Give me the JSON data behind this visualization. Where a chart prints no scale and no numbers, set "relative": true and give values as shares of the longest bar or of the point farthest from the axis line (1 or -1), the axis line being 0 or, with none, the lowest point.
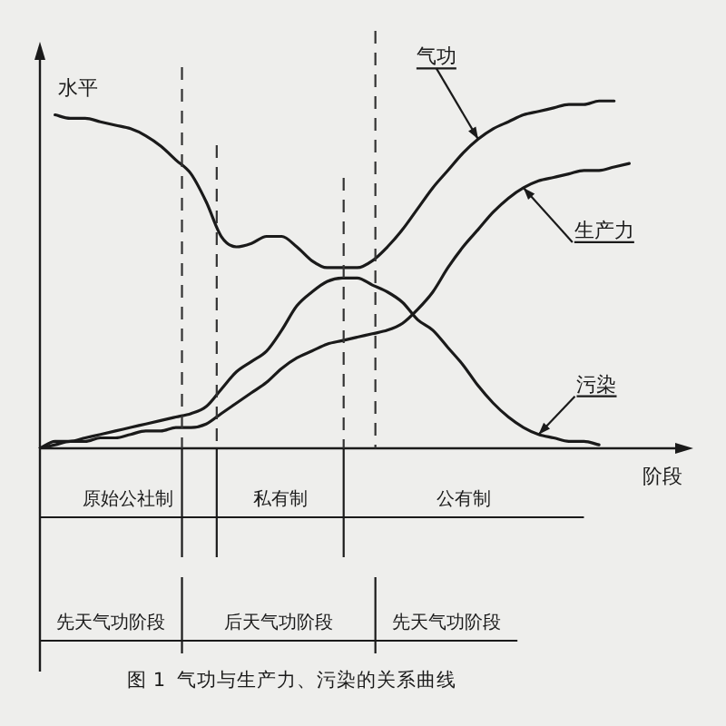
{
  "chart_data": {
    "type": "line",
    "relative": true,
    "title": "图 1  气功与生产力、污染的关系曲线",
    "xlabel": "阶段",
    "ylabel": "水平",
    "categories": [
      null,
      null,
      null,
      null,
      null,
      null,
      null,
      null,
      null,
      null,
      null,
      null,
      null,
      null,
      null,
      null,
      null,
      null,
      null,
      null,
      null,
      null,
      null,
      null,
      null,
      null,
      null,
      null,
      null,
      null,
      null,
      null,
      null,
      null,
      null,
      null,
      null,
      null,
      null,
      null,
      null,
      null,
      null,
      null
    ],
    "series": [
      {
        "name": "气功",
        "color": "#1a1a1a",
        "values": [
          null,
          0.96,
          0.95,
          0.95,
          0.94,
          0.93,
          0.92,
          0.9,
          0.87,
          0.83,
          0.79,
          0.71,
          0.61,
          0.58,
          0.59,
          0.61,
          0.61,
          0.58,
          0.54,
          0.52,
          0.52,
          0.52,
          0.54,
          0.58,
          0.63,
          0.69,
          0.75,
          0.8,
          0.85,
          0.89,
          0.92,
          0.94,
          0.96,
          0.97,
          0.98,
          0.99,
          0.99,
          1.0,
          1.0,
          null,
          null,
          null,
          null,
          null
        ]
      },
      {
        "name": "生产力",
        "color": "#1a1a1a",
        "values": [
          0,
          0.01,
          0.02,
          0.02,
          0.03,
          0.03,
          0.04,
          0.05,
          0.05,
          0.06,
          0.06,
          0.07,
          0.1,
          0.13,
          0.16,
          0.19,
          0.23,
          0.26,
          0.28,
          0.3,
          0.31,
          0.32,
          0.33,
          0.34,
          0.36,
          0.4,
          0.45,
          0.52,
          0.58,
          0.63,
          0.68,
          0.72,
          0.75,
          0.77,
          0.78,
          0.79,
          0.8,
          0.8,
          0.81,
          0.82,
          null,
          null,
          null,
          null
        ]
      },
      {
        "name": "污染",
        "color": "#1a1a1a",
        "values": [
          0,
          0.02,
          0.02,
          0.03,
          0.04,
          0.05,
          0.06,
          0.07,
          0.08,
          0.09,
          0.1,
          0.12,
          0.17,
          0.22,
          0.25,
          0.28,
          0.34,
          0.41,
          0.45,
          0.48,
          0.49,
          0.49,
          0.47,
          0.45,
          0.42,
          0.37,
          0.34,
          0.29,
          0.24,
          0.18,
          0.13,
          0.09,
          0.06,
          0.04,
          0.03,
          0.02,
          0.02,
          0.01,
          null,
          null,
          null,
          null,
          null,
          null
        ]
      }
    ],
    "annotations": [
      "原始公社制",
      "私有制",
      "公有制",
      "先天气功阶段",
      "后天气功阶段",
      "先天气功阶段"
    ]
  }
}
